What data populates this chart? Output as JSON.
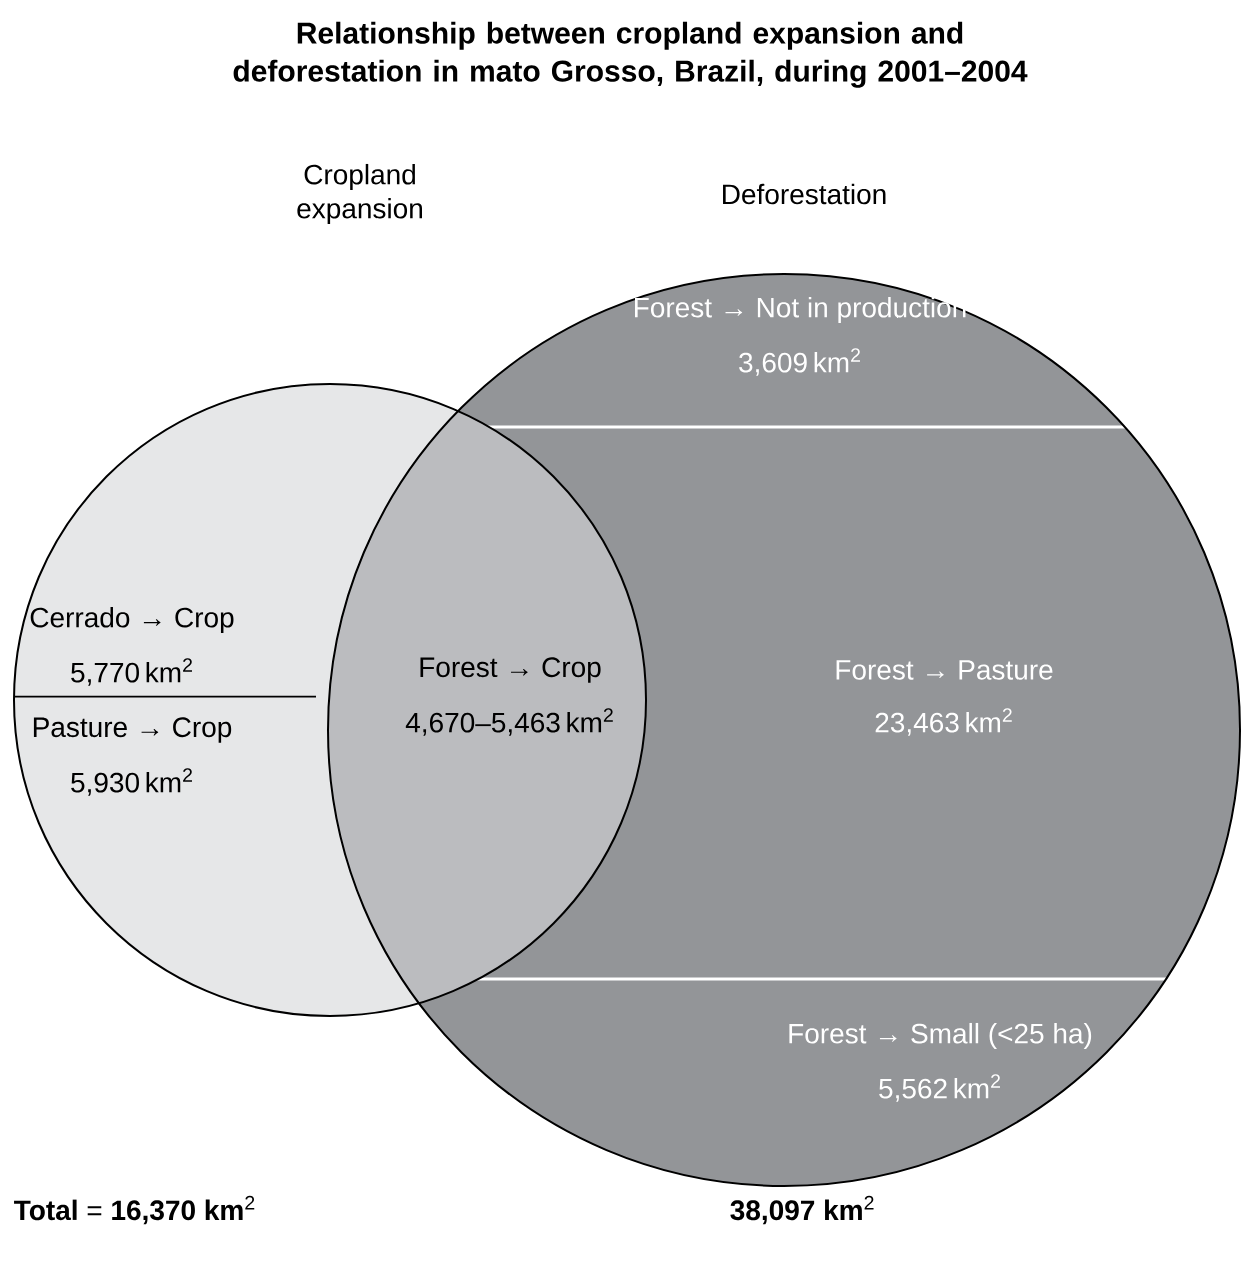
{
  "chart_data": {
    "type": "other",
    "title": "Relationship between cropland expansion and deforestation in mato Grosso, Brazil, during 2001–2004",
    "categories": [
      "Forest → Not in production",
      "Cerrado → Crop",
      "Pasture → Crop",
      "Forest → Crop",
      "Forest → Pasture",
      "Forest → Small (<25 ha)"
    ],
    "values": [
      3609,
      5770,
      5930,
      null,
      23463,
      5562
    ],
    "value_labels": [
      "3,609",
      "5,770",
      "5,930",
      "4,670–5,463",
      "23,463",
      "5,562"
    ],
    "ylabel": "km$^{2}$",
    "annotations": [
      "Cropland expansion",
      "Deforestation",
      "**Total** = **16,370 km**$^{2}$",
      "**38,097 km**$^{2}$"
    ]
  }
}
